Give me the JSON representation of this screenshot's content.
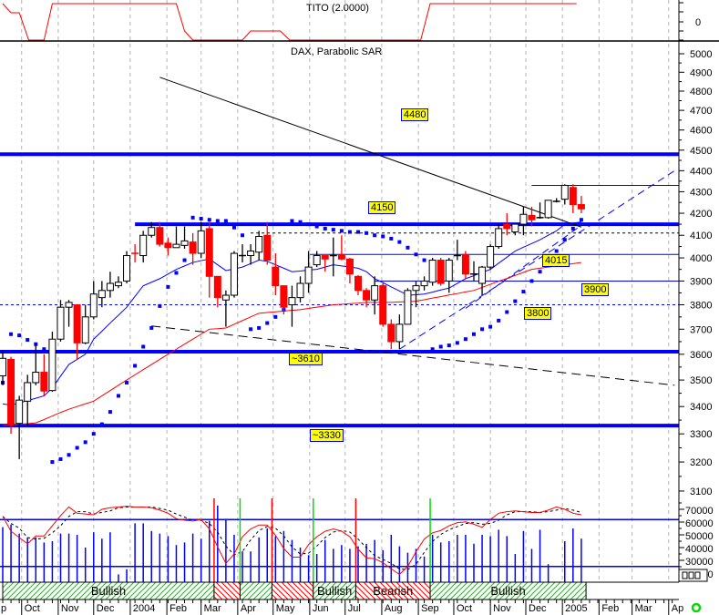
{
  "chart_data": {
    "type": "candlestick",
    "indicator_title": "TITO (2.0000)",
    "title": "DAX, Parabolic SAR",
    "price_scale": "log",
    "price_ticks": [
      5000,
      4900,
      4800,
      4700,
      4600,
      4500,
      4400,
      4300,
      4200,
      4100,
      4000,
      3900,
      3800,
      3700,
      3600,
      3500,
      3400,
      3300,
      3200,
      3100
    ],
    "indicator_ticks": [
      "0"
    ],
    "volume_ticks": [
      70000,
      60000,
      50000,
      40000,
      30000,
      20000
    ],
    "x_labels": [
      {
        "date": "2003-09-01",
        "label": "p"
      },
      {
        "date": "2003-10-01",
        "label": "Oct"
      },
      {
        "date": "2003-11-01",
        "label": "Nov"
      },
      {
        "date": "2003-12-01",
        "label": "Dec"
      },
      {
        "date": "2004-01-01",
        "label": "2004"
      },
      {
        "date": "2004-02-01",
        "label": "Feb"
      },
      {
        "date": "2004-03-01",
        "label": "Mar"
      },
      {
        "date": "2004-04-01",
        "label": "Apr"
      },
      {
        "date": "2004-05-01",
        "label": "May"
      },
      {
        "date": "2004-06-01",
        "label": "Jun"
      },
      {
        "date": "2004-07-01",
        "label": "Jul"
      },
      {
        "date": "2004-08-01",
        "label": "Aug"
      },
      {
        "date": "2004-09-01",
        "label": "Sep"
      },
      {
        "date": "2004-10-01",
        "label": "Oct"
      },
      {
        "date": "2004-11-01",
        "label": "Nov"
      },
      {
        "date": "2004-12-01",
        "label": "Dec"
      },
      {
        "date": "2005-01-01",
        "label": "2005"
      },
      {
        "date": "2005-02-01",
        "label": "Feb"
      },
      {
        "date": "2005-03-01",
        "label": "Mar"
      },
      {
        "date": "2005-04-01",
        "label": "Ap"
      }
    ],
    "candles_fields": [
      "date",
      "open",
      "high",
      "low",
      "close"
    ],
    "candles": [
      [
        "2003-09-15",
        3516,
        3615,
        3480,
        3584
      ],
      [
        "2003-09-22",
        3580,
        3590,
        3300,
        3338
      ],
      [
        "2003-09-29",
        3338,
        3440,
        3210,
        3424
      ],
      [
        "2003-10-06",
        3420,
        3520,
        3330,
        3490
      ],
      [
        "2003-10-13",
        3490,
        3640,
        3480,
        3530
      ],
      [
        "2003-10-20",
        3530,
        3600,
        3440,
        3458
      ],
      [
        "2003-10-27",
        3460,
        3690,
        3455,
        3660
      ],
      [
        "2003-11-03",
        3660,
        3820,
        3650,
        3790
      ],
      [
        "2003-11-10",
        3790,
        3820,
        3710,
        3810
      ],
      [
        "2003-11-17",
        3800,
        3800,
        3580,
        3645
      ],
      [
        "2003-11-24",
        3645,
        3800,
        3640,
        3750
      ],
      [
        "2003-12-01",
        3750,
        3900,
        3740,
        3845
      ],
      [
        "2003-12-08",
        3830,
        3900,
        3790,
        3860
      ],
      [
        "2003-12-15",
        3860,
        3940,
        3830,
        3890
      ],
      [
        "2003-12-22",
        3880,
        3920,
        3870,
        3895
      ],
      [
        "2003-12-29",
        3900,
        4030,
        3890,
        4010
      ],
      [
        "2004-01-05",
        4020,
        4060,
        3980,
        4010
      ],
      [
        "2004-01-12",
        4010,
        4120,
        3980,
        4100
      ],
      [
        "2004-01-19",
        4100,
        4160,
        4090,
        4135
      ],
      [
        "2004-01-26",
        4135,
        4160,
        4050,
        4060
      ],
      [
        "2004-02-02",
        4065,
        4090,
        4010,
        4045
      ],
      [
        "2004-02-09",
        4045,
        4140,
        4045,
        4060
      ],
      [
        "2004-02-16",
        4055,
        4140,
        4040,
        4075
      ],
      [
        "2004-02-23",
        4070,
        4110,
        3970,
        4020
      ],
      [
        "2004-03-01",
        4020,
        4160,
        4000,
        4120
      ],
      [
        "2004-03-08",
        4130,
        4160,
        3830,
        3920
      ],
      [
        "2004-03-15",
        3920,
        3920,
        3790,
        3830
      ],
      [
        "2004-03-22",
        3820,
        3860,
        3710,
        3840
      ],
      [
        "2004-03-29",
        3840,
        4030,
        3830,
        4020
      ],
      [
        "2004-04-05",
        4010,
        4060,
        3980,
        4015
      ],
      [
        "2004-04-12",
        4010,
        4060,
        3970,
        4030
      ],
      [
        "2004-04-19",
        4025,
        4120,
        3990,
        4095
      ],
      [
        "2004-04-26",
        4100,
        4160,
        3970,
        3990
      ],
      [
        "2004-05-03",
        3960,
        4020,
        3840,
        3880
      ],
      [
        "2004-05-10",
        3880,
        3880,
        3760,
        3790
      ],
      [
        "2004-05-17",
        3800,
        3880,
        3710,
        3830
      ],
      [
        "2004-05-24",
        3830,
        3920,
        3810,
        3890
      ],
      [
        "2004-05-31",
        3890,
        4030,
        3850,
        3960
      ],
      [
        "2004-06-07",
        3970,
        4030,
        3960,
        4010
      ],
      [
        "2004-06-14",
        4010,
        4010,
        3940,
        3995
      ],
      [
        "2004-06-21",
        4010,
        4090,
        3920,
        4010
      ],
      [
        "2004-06-28",
        4015,
        4100,
        3990,
        3995
      ],
      [
        "2004-07-05",
        3995,
        4000,
        3890,
        3930
      ],
      [
        "2004-07-12",
        3920,
        3925,
        3840,
        3860
      ],
      [
        "2004-07-19",
        3860,
        3870,
        3790,
        3820
      ],
      [
        "2004-07-26",
        3820,
        3920,
        3760,
        3880
      ],
      [
        "2004-08-02",
        3880,
        3890,
        3710,
        3720
      ],
      [
        "2004-08-09",
        3720,
        3740,
        3620,
        3650
      ],
      [
        "2004-08-16",
        3650,
        3760,
        3620,
        3720
      ],
      [
        "2004-08-23",
        3720,
        3870,
        3720,
        3860
      ],
      [
        "2004-08-30",
        3860,
        3900,
        3790,
        3880
      ],
      [
        "2004-09-06",
        3880,
        3920,
        3860,
        3900
      ],
      [
        "2004-09-13",
        3895,
        4000,
        3880,
        3990
      ],
      [
        "2004-09-20",
        3990,
        4000,
        3880,
        3890
      ],
      [
        "2004-09-27",
        3900,
        4000,
        3850,
        3990
      ],
      [
        "2004-10-04",
        4010,
        4080,
        3990,
        4010
      ],
      [
        "2004-10-11",
        4015,
        4030,
        3910,
        3930
      ],
      [
        "2004-10-18",
        3930,
        3985,
        3900,
        3935
      ],
      [
        "2004-10-25",
        3890,
        3965,
        3840,
        3960
      ],
      [
        "2004-11-01",
        3960,
        4060,
        3950,
        4050
      ],
      [
        "2004-11-08",
        4050,
        4150,
        4040,
        4130
      ],
      [
        "2004-11-15",
        4150,
        4200,
        4100,
        4130
      ],
      [
        "2004-11-22",
        4115,
        4155,
        4100,
        4150
      ],
      [
        "2004-11-29",
        4150,
        4230,
        4100,
        4195
      ],
      [
        "2004-12-06",
        4190,
        4230,
        4140,
        4170
      ],
      [
        "2004-12-13",
        4180,
        4250,
        4175,
        4180
      ],
      [
        "2004-12-20",
        4180,
        4260,
        4175,
        4260
      ],
      [
        "2004-12-27",
        4255,
        4270,
        4250,
        4265
      ],
      [
        "2005-01-03",
        4265,
        4335,
        4240,
        4330
      ],
      [
        "2005-01-10",
        4320,
        4335,
        4200,
        4240
      ],
      [
        "2005-01-17",
        4240,
        4280,
        4200,
        4220
      ]
    ],
    "ma_short": [
      3410,
      3405,
      3414,
      3422,
      3431,
      3440,
      3470,
      3515,
      3560,
      3580,
      3600,
      3660,
      3692,
      3725,
      3757,
      3790,
      3835,
      3880,
      3895,
      3910,
      3930,
      3950,
      3965,
      3980,
      3988,
      3995,
      3970,
      3945,
      3952,
      3960,
      3975,
      3990,
      3985,
      3970,
      3955,
      3940,
      3943,
      3947,
      3950,
      3960,
      3970,
      3965,
      3960,
      3955,
      3940,
      3910,
      3893,
      3875,
      3858,
      3840,
      3842,
      3845,
      3853,
      3862,
      3870,
      3890,
      3910,
      3923,
      3937,
      3950,
      3977,
      4003,
      4030,
      4047,
      4063,
      4080,
      4100,
      4120,
      4150,
      4155,
      4160
    ],
    "ma_long": [
      3330,
      3332,
      3335,
      3337,
      3340,
      3352,
      3365,
      3378,
      3390,
      3400,
      3410,
      3420,
      3440,
      3460,
      3480,
      3500,
      3520,
      3540,
      3560,
      3580,
      3600,
      3620,
      3640,
      3660,
      3680,
      3700,
      3702,
      3705,
      3720,
      3735,
      3750,
      3765,
      3768,
      3771,
      3774,
      3777,
      3780,
      3785,
      3790,
      3795,
      3800,
      3802,
      3805,
      3807,
      3810,
      3810,
      3810,
      3810,
      3812,
      3813,
      3815,
      3821,
      3828,
      3834,
      3841,
      3847,
      3854,
      3860,
      3873,
      3886,
      3899,
      3911,
      3924,
      3937,
      3950,
      3955,
      3960,
      3965,
      3970,
      3975,
      3980
    ],
    "parabolic_sar": [
      3490,
      3680,
      3675,
      3657,
      3640,
      3620,
      3200,
      3210,
      3225,
      3250,
      3270,
      3300,
      3335,
      3380,
      3440,
      3490,
      3555,
      3630,
      3705,
      3795,
      3875,
      3935,
      3990,
      4180,
      4175,
      4170,
      4165,
      4165,
      4135,
      4100,
      3700,
      3705,
      3725,
      3750,
      3780,
      4165,
      4160,
      4150,
      4140,
      4130,
      4125,
      4120,
      4115,
      4115,
      4110,
      4100,
      4095,
      4085,
      4070,
      4045,
      4015,
      3990,
      3620,
      3630,
      3635,
      3645,
      3660,
      3680,
      3700,
      3710,
      3735,
      3770,
      3815,
      3855,
      3900,
      3940,
      3985,
      4030,
      4080,
      4130,
      4170
    ],
    "volume": [
      56000,
      58000,
      51000,
      48000,
      48000,
      44000,
      45000,
      51000,
      51000,
      50000,
      40000,
      52000,
      47000,
      52000,
      19000,
      23000,
      59000,
      59000,
      53000,
      51000,
      49000,
      42000,
      44000,
      51000,
      47000,
      61000,
      73000,
      62000,
      50000,
      37000,
      37000,
      48000,
      55000,
      49000,
      53000,
      46000,
      40000,
      34000,
      35000,
      46000,
      39000,
      42000,
      39000,
      41000,
      43000,
      46000,
      38000,
      50000,
      41000,
      36000,
      39000,
      33000,
      50000,
      44000,
      45000,
      50000,
      50000,
      43000,
      50000,
      49000,
      54000,
      49000,
      35000,
      53000,
      39000,
      54000,
      27000,
      null,
      45000,
      55000,
      47000
    ],
    "oscillator": [
      84,
      65,
      57,
      49,
      59,
      59,
      72,
      85,
      96,
      88,
      87,
      86,
      93,
      95,
      96,
      97,
      96,
      96,
      95,
      92,
      88,
      81,
      79,
      78,
      80,
      68,
      45,
      24,
      36,
      58,
      68,
      73,
      73,
      60,
      43,
      32,
      32,
      48,
      58,
      65,
      68,
      65,
      58,
      42,
      31,
      30,
      25,
      17,
      10,
      20,
      39,
      55,
      63,
      66,
      72,
      76,
      77,
      74,
      70,
      80,
      88,
      90,
      91,
      90,
      89,
      89,
      92,
      96,
      93,
      88,
      86
    ],
    "oscillator_signal": [
      84,
      75,
      69,
      57,
      55,
      56,
      63,
      72,
      84,
      90,
      90,
      87,
      89,
      91,
      95,
      96,
      96,
      96,
      96,
      94,
      92,
      87,
      83,
      79,
      79,
      75,
      64,
      46,
      35,
      39,
      54,
      66,
      71,
      69,
      59,
      45,
      36,
      37,
      46,
      57,
      64,
      66,
      64,
      55,
      44,
      34,
      29,
      24,
      17,
      16,
      23,
      38,
      52,
      61,
      67,
      71,
      75,
      76,
      74,
      75,
      79,
      86,
      90,
      90,
      90,
      89,
      90,
      92,
      94,
      92,
      89
    ],
    "oscillator_levels": [
      80,
      20
    ],
    "tito": [
      [
        "2003-09-15",
        1
      ],
      [
        "2003-09-22",
        0.5
      ],
      [
        "2003-09-29",
        0.5
      ],
      [
        "2003-10-07",
        -1
      ],
      [
        "2003-10-20",
        -1
      ],
      [
        "2003-10-27",
        1
      ],
      [
        "2004-02-09",
        1
      ],
      [
        "2004-02-16",
        -0.5
      ],
      [
        "2004-02-23",
        -1
      ],
      [
        "2004-04-05",
        -1
      ],
      [
        "2004-04-12",
        -0.5
      ],
      [
        "2004-05-07",
        -0.5
      ],
      [
        "2004-05-15",
        -1
      ],
      [
        "2004-09-03",
        -1
      ],
      [
        "2004-09-11",
        1
      ],
      [
        "2005-01-13",
        1
      ]
    ],
    "horizontal_lines": [
      {
        "price": 4480,
        "style": "thick",
        "color": "#0000ff",
        "from": null
      },
      {
        "price": 4150,
        "style": "thick",
        "color": "#0000ff",
        "from": "2004-01-05"
      },
      {
        "price": 3610,
        "style": "thick",
        "color": "#0000ff",
        "from": null
      },
      {
        "price": 3330,
        "style": "thick",
        "color": "#0000ff",
        "from": null
      },
      {
        "price": 4330,
        "style": "thin",
        "color": "#0000ff",
        "from": "2004-12-06"
      },
      {
        "price": 4015,
        "style": "thin",
        "color": "#0000ff",
        "from": "2004-06-01"
      },
      {
        "price": 3900,
        "style": "thin",
        "color": "#0000ff",
        "from": "2004-07-26"
      },
      {
        "price": 4110,
        "style": "dashed",
        "color": "#000000",
        "from": "2004-04-12"
      },
      {
        "price": 3800,
        "style": "dashed",
        "color": "#0000ff",
        "from": null
      }
    ],
    "trend_lines": [
      {
        "from": [
          "2004-01-26",
          4873
        ],
        "to": [
          "2005-01-17",
          4137
        ],
        "style": "solid",
        "color": "#000000"
      },
      {
        "from": [
          "2004-01-19",
          3713
        ],
        "to": [
          "2005-04-06",
          3480
        ],
        "style": "dashed",
        "color": "#000000"
      },
      {
        "from": [
          "2004-08-16",
          3620
        ],
        "to": [
          "2005-04-06",
          4400
        ],
        "style": "dashed",
        "color": "#0000ff"
      },
      {
        "from": [
          "2004-10-11",
          3785
        ],
        "to": [
          "2005-01-17",
          4145
        ],
        "style": "dashed",
        "color": "#0000ff"
      }
    ],
    "price_labels": [
      "4480",
      "4150",
      "4015",
      "3900",
      "3800",
      "~3610",
      "~3330"
    ],
    "signals": [
      {
        "date": "2004-03-12",
        "type": "sell",
        "color": "#ff0000"
      },
      {
        "date": "2004-04-03",
        "type": "buy",
        "color": "#00dd00"
      },
      {
        "date": "2004-04-30",
        "type": "sell",
        "color": "#ff0000"
      },
      {
        "date": "2004-06-04",
        "type": "buy",
        "color": "#00dd00"
      },
      {
        "date": "2004-07-10",
        "type": "sell",
        "color": "#ff0000"
      },
      {
        "date": "2004-09-11",
        "type": "buy",
        "color": "#00dd00"
      }
    ],
    "regimes": [
      {
        "start": "2003-09-15",
        "end": "2004-03-12",
        "type": "bullish",
        "label": "Bullish"
      },
      {
        "start": "2004-03-12",
        "end": "2004-04-03",
        "type": "bearish",
        "label": ""
      },
      {
        "start": "2004-04-03",
        "end": "2004-04-30",
        "type": "bullish",
        "label": ""
      },
      {
        "start": "2004-04-30",
        "end": "2004-06-04",
        "type": "bearish",
        "label": ""
      },
      {
        "start": "2004-06-04",
        "end": "2004-07-10",
        "type": "bullish",
        "label": "Bullish"
      },
      {
        "start": "2004-07-10",
        "end": "2004-09-11",
        "type": "bearish",
        "label": "Bearish"
      },
      {
        "start": "2004-09-11",
        "end": "2005-01-21",
        "type": "bullish",
        "label": "Bullish"
      }
    ],
    "colors": {
      "up": "#ffffff",
      "down": "#ff0000",
      "ma_short": "#0000ff",
      "ma_long": "#ff0000",
      "sar": "#0000ff",
      "volume": "#0000ff",
      "oscillator": "#ff0000",
      "signal": "#000000",
      "grid": "#b4b4b4",
      "label_bg": "#ffff00",
      "bullish": "#00cc00",
      "bearish": "#ff0000"
    },
    "grid": true,
    "status_icon": "green-circle-icon"
  }
}
